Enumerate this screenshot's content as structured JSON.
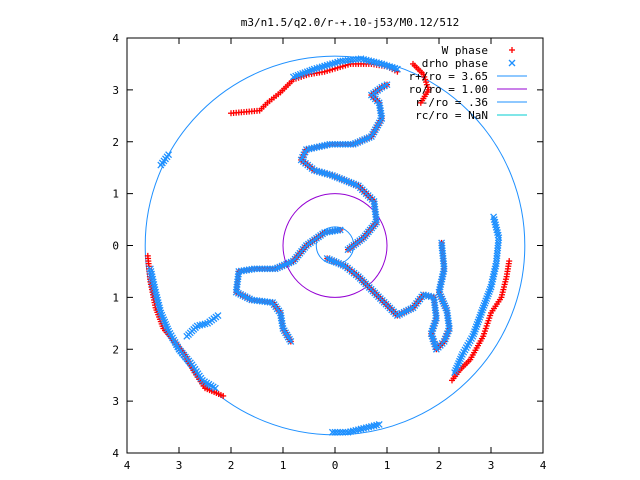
{
  "chart_data": {
    "type": "scatter",
    "title": "m3/n1.5/q2.0/r-+.10-j53/M0.12/512",
    "xlabel": "",
    "ylabel": "",
    "xlim": [
      -4,
      4
    ],
    "ylim": [
      -4,
      4
    ],
    "x_ticks": [
      {
        "value": -4,
        "label": "4"
      },
      {
        "value": -3,
        "label": "3"
      },
      {
        "value": -2,
        "label": "2"
      },
      {
        "value": -1,
        "label": "1"
      },
      {
        "value": 0,
        "label": "0"
      },
      {
        "value": 1,
        "label": "1"
      },
      {
        "value": 2,
        "label": "2"
      },
      {
        "value": 3,
        "label": "3"
      },
      {
        "value": 4,
        "label": "4"
      }
    ],
    "y_ticks": [
      {
        "value": 4,
        "label": "4"
      },
      {
        "value": 3,
        "label": "3"
      },
      {
        "value": 2,
        "label": "2"
      },
      {
        "value": 1,
        "label": "1"
      },
      {
        "value": 0,
        "label": "0"
      },
      {
        "value": -1,
        "label": "1"
      },
      {
        "value": -2,
        "label": "2"
      },
      {
        "value": -3,
        "label": "3"
      },
      {
        "value": -4,
        "label": "4"
      }
    ],
    "grid": false,
    "legend_position": "top-right",
    "legend": [
      {
        "label": "W phase",
        "marker": "plus",
        "color": "#ff0000"
      },
      {
        "label": "drho phase",
        "marker": "cross",
        "color": "#1e90ff"
      },
      {
        "label": "r+/ro = 3.65",
        "marker": "line",
        "color": "#1e90ff"
      },
      {
        "label": "ro/ro = 1.00",
        "marker": "line",
        "color": "#9400d3"
      },
      {
        "label": "r-/ro = .36",
        "marker": "line",
        "color": "#1e90ff"
      },
      {
        "label": "rc/ro = NaN",
        "marker": "line",
        "color": "#00ced1"
      }
    ],
    "circles": [
      {
        "label": "r+/ro = 3.65",
        "radius": 3.65,
        "color": "#1e90ff"
      },
      {
        "label": "ro/ro = 1.00",
        "radius": 1.0,
        "color": "#9400d3"
      },
      {
        "label": "r-/ro = .36",
        "radius": 0.36,
        "color": "#1e90ff"
      }
    ],
    "series": [
      {
        "name": "W phase",
        "marker": "plus",
        "color": "#ff0000",
        "arms": [
          [
            [
              0.25,
              -0.08
            ],
            [
              0.55,
              0.15
            ],
            [
              0.8,
              0.45
            ],
            [
              0.75,
              0.85
            ],
            [
              0.45,
              1.15
            ],
            [
              -0.05,
              1.35
            ],
            [
              -0.4,
              1.45
            ],
            [
              -0.65,
              1.65
            ],
            [
              -0.55,
              1.85
            ],
            [
              -0.1,
              1.95
            ],
            [
              0.35,
              1.95
            ],
            [
              0.7,
              2.1
            ],
            [
              0.9,
              2.45
            ],
            [
              0.85,
              2.75
            ],
            [
              0.7,
              2.9
            ],
            [
              0.9,
              3.05
            ],
            [
              1.0,
              3.1
            ]
          ],
          [
            [
              0.1,
              0.3
            ],
            [
              -0.2,
              0.25
            ],
            [
              -0.55,
              0.0
            ],
            [
              -0.8,
              -0.3
            ],
            [
              -1.15,
              -0.45
            ],
            [
              -1.55,
              -0.45
            ],
            [
              -1.85,
              -0.5
            ],
            [
              -1.9,
              -0.9
            ],
            [
              -1.6,
              -1.05
            ],
            [
              -1.2,
              -1.1
            ],
            [
              -1.05,
              -1.3
            ],
            [
              -1.0,
              -1.6
            ],
            [
              -0.85,
              -1.85
            ]
          ],
          [
            [
              -0.15,
              -0.25
            ],
            [
              0.2,
              -0.4
            ],
            [
              0.45,
              -0.6
            ],
            [
              0.8,
              -0.95
            ],
            [
              1.2,
              -1.35
            ],
            [
              1.5,
              -1.2
            ],
            [
              1.7,
              -0.95
            ],
            [
              1.9,
              -1.0
            ],
            [
              1.95,
              -1.4
            ],
            [
              1.85,
              -1.7
            ],
            [
              1.95,
              -2.0
            ],
            [
              2.1,
              -1.85
            ],
            [
              2.2,
              -1.6
            ],
            [
              2.15,
              -1.25
            ],
            [
              2.0,
              -0.9
            ],
            [
              2.1,
              -0.45
            ],
            [
              2.05,
              0.05
            ]
          ],
          [
            [
              -2.0,
              2.55
            ],
            [
              -1.45,
              2.6
            ],
            [
              -1.3,
              2.75
            ],
            [
              -1.05,
              2.95
            ],
            [
              -0.8,
              3.2
            ],
            [
              -0.5,
              3.3
            ],
            [
              -0.2,
              3.35
            ],
            [
              0.3,
              3.5
            ],
            [
              0.7,
              3.5
            ],
            [
              1.0,
              3.45
            ],
            [
              1.2,
              3.35
            ]
          ],
          [
            [
              -3.6,
              -0.2
            ],
            [
              -3.55,
              -0.7
            ],
            [
              -3.45,
              -1.2
            ],
            [
              -3.3,
              -1.6
            ],
            [
              -3.05,
              -1.9
            ],
            [
              -2.9,
              -2.1
            ],
            [
              -2.7,
              -2.45
            ],
            [
              -2.5,
              -2.75
            ],
            [
              -2.15,
              -2.9
            ]
          ],
          [
            [
              1.5,
              3.5
            ],
            [
              1.7,
              3.3
            ],
            [
              1.8,
              3.0
            ],
            [
              1.65,
              2.75
            ]
          ],
          [
            [
              2.25,
              -2.6
            ],
            [
              2.4,
              -2.4
            ],
            [
              2.6,
              -2.2
            ],
            [
              2.85,
              -1.75
            ],
            [
              3.0,
              -1.3
            ],
            [
              3.2,
              -1.0
            ],
            [
              3.3,
              -0.6
            ],
            [
              3.35,
              -0.3
            ]
          ]
        ]
      },
      {
        "name": "drho phase",
        "marker": "cross",
        "color": "#1e90ff",
        "arms": [
          [
            [
              0.25,
              -0.08
            ],
            [
              0.55,
              0.15
            ],
            [
              0.8,
              0.45
            ],
            [
              0.75,
              0.85
            ],
            [
              0.45,
              1.15
            ],
            [
              -0.05,
              1.35
            ],
            [
              -0.4,
              1.45
            ],
            [
              -0.65,
              1.65
            ],
            [
              -0.55,
              1.85
            ],
            [
              -0.1,
              1.95
            ],
            [
              0.35,
              1.95
            ],
            [
              0.7,
              2.1
            ],
            [
              0.9,
              2.45
            ],
            [
              0.85,
              2.75
            ],
            [
              0.7,
              2.9
            ],
            [
              0.9,
              3.05
            ],
            [
              1.0,
              3.1
            ]
          ],
          [
            [
              0.1,
              0.3
            ],
            [
              -0.2,
              0.25
            ],
            [
              -0.55,
              0.0
            ],
            [
              -0.8,
              -0.3
            ],
            [
              -1.15,
              -0.45
            ],
            [
              -1.55,
              -0.45
            ],
            [
              -1.85,
              -0.5
            ],
            [
              -1.9,
              -0.9
            ],
            [
              -1.6,
              -1.05
            ],
            [
              -1.2,
              -1.1
            ],
            [
              -1.05,
              -1.3
            ],
            [
              -1.0,
              -1.6
            ],
            [
              -0.85,
              -1.85
            ]
          ],
          [
            [
              -0.15,
              -0.25
            ],
            [
              0.2,
              -0.4
            ],
            [
              0.45,
              -0.6
            ],
            [
              0.8,
              -0.95
            ],
            [
              1.2,
              -1.35
            ],
            [
              1.5,
              -1.2
            ],
            [
              1.7,
              -0.95
            ],
            [
              1.9,
              -1.0
            ],
            [
              1.95,
              -1.4
            ],
            [
              1.85,
              -1.7
            ],
            [
              1.95,
              -2.0
            ],
            [
              2.1,
              -1.85
            ],
            [
              2.2,
              -1.6
            ],
            [
              2.15,
              -1.25
            ],
            [
              2.0,
              -0.9
            ],
            [
              2.1,
              -0.45
            ],
            [
              2.05,
              0.05
            ]
          ],
          [
            [
              -0.8,
              3.25
            ],
            [
              -0.4,
              3.4
            ],
            [
              0.1,
              3.55
            ],
            [
              0.5,
              3.6
            ],
            [
              0.9,
              3.5
            ],
            [
              1.2,
              3.4
            ]
          ],
          [
            [
              -3.55,
              -0.45
            ],
            [
              -3.45,
              -0.9
            ],
            [
              -3.35,
              -1.3
            ],
            [
              -3.2,
              -1.65
            ],
            [
              -3.0,
              -2.0
            ],
            [
              -2.75,
              -2.3
            ],
            [
              -2.55,
              -2.6
            ],
            [
              -2.3,
              -2.75
            ]
          ],
          [
            [
              -3.2,
              1.75
            ],
            [
              -3.35,
              1.55
            ]
          ],
          [
            [
              -2.25,
              -1.35
            ],
            [
              -2.45,
              -1.5
            ],
            [
              -2.65,
              -1.55
            ],
            [
              -2.85,
              -1.75
            ]
          ],
          [
            [
              3.05,
              0.55
            ],
            [
              3.15,
              0.15
            ],
            [
              3.1,
              -0.35
            ],
            [
              3.0,
              -0.8
            ],
            [
              2.85,
              -1.2
            ],
            [
              2.65,
              -1.75
            ],
            [
              2.45,
              -2.1
            ],
            [
              2.3,
              -2.45
            ]
          ],
          [
            [
              -0.05,
              -3.6
            ],
            [
              0.25,
              -3.6
            ],
            [
              0.85,
              -3.45
            ]
          ]
        ]
      }
    ]
  }
}
